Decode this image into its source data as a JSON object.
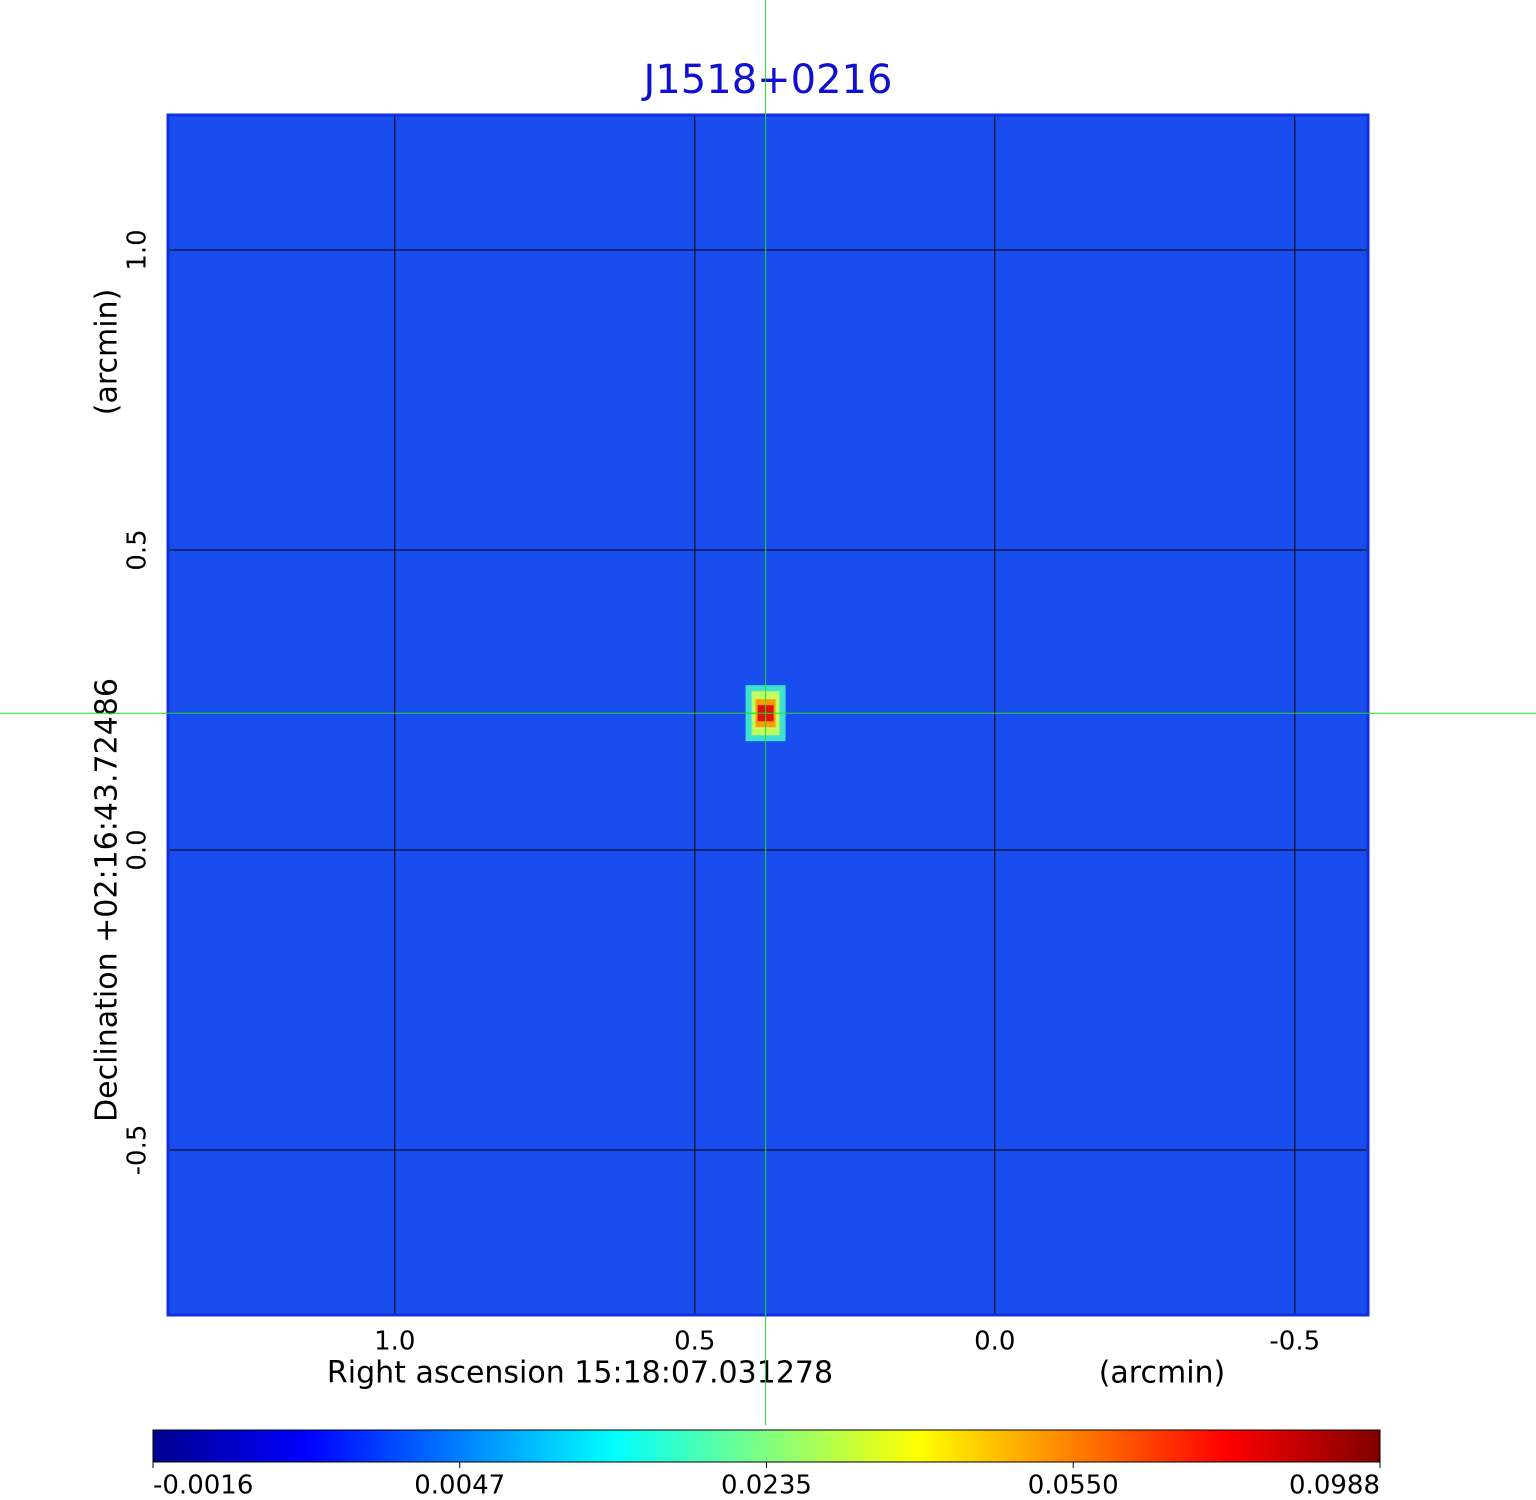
{
  "chart_data": {
    "type": "image",
    "title": "J1518+0216",
    "x_label": "Right ascension  15:18:07.031278",
    "x_unit": "(arcmin)",
    "y_label": "Declination  +02:16:43.72486",
    "y_unit": "(arcmin)",
    "xlim": [
      1.378,
      -0.622
    ],
    "ylim": [
      -0.775,
      1.225
    ],
    "xticks": [
      {
        "value": 1,
        "label": "1.0"
      },
      0.5,
      {
        "value": 0,
        "label": "0.0"
      },
      -0.5
    ],
    "yticks": [
      {
        "value": 1,
        "label": "1.0"
      },
      0.5,
      {
        "value": 0,
        "label": "0.0"
      },
      -0.5
    ],
    "grid": true,
    "background_color": "#1a4ded",
    "source": {
      "x": 0.382,
      "y": 0.228,
      "peak": 0.0988
    },
    "crosshair": {
      "x": 0.382,
      "y": 0.228,
      "color": "#22dd22"
    },
    "colorbar_ticks": [
      -0.0016,
      0.0047,
      0.0235,
      {
        "value": 0.055,
        "label": "0.0550"
      },
      0.0988
    ],
    "colormap": [
      "#00008f",
      "#0000ff",
      "#0080ff",
      "#00ffff",
      "#80ff80",
      "#ffff00",
      "#ff8000",
      "#ff0000",
      "#800000"
    ]
  }
}
